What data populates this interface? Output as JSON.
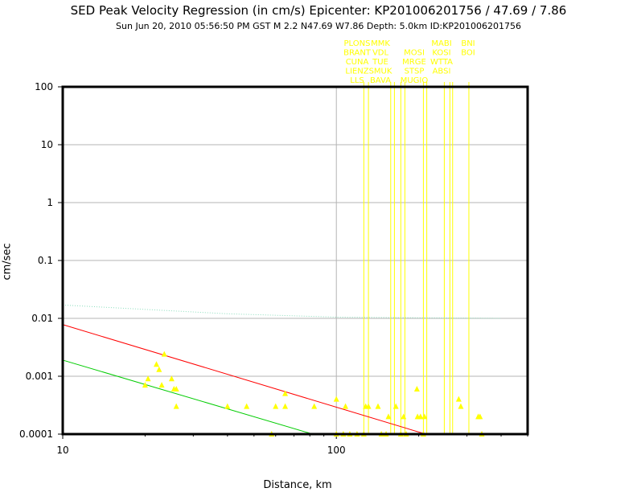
{
  "title": "SED Peak Velocity Regression (in cm/s) Epicenter: KP201006201756 / 47.69 / 7.86",
  "subtitle": "Sun Jun 20, 2010 05:56:50 PM GST   M 2.2   N47.69 W7.86   Depth: 5.0km   ID:KP201006201756",
  "colors": {
    "points": "#ffff00",
    "red_line": "#ff0000",
    "green_line": "#00cc00",
    "cyan_line": "#88ddbb",
    "grid": "#b4b4b4"
  },
  "chart_data": {
    "type": "scatter",
    "xlabel": "Distance, km",
    "ylabel": "cm/sec",
    "xscale": "log",
    "yscale": "log",
    "xlim": [
      10,
      500
    ],
    "ylim": [
      0.0001,
      100
    ],
    "xticks": [
      "10",
      "100"
    ],
    "yticks": [
      "0.0001",
      "0.001",
      "0.01",
      "0.1",
      "1",
      "10",
      "100"
    ],
    "station_label_columns": [
      [
        "PLONS",
        "BRANT",
        "CUNA",
        "LIENZ",
        "LLS"
      ],
      [
        "MMK",
        "VDL",
        "TUE",
        "SMUK",
        "BAVA"
      ],
      [
        "MOSI",
        "MRGE",
        "STSP",
        "MUGIO"
      ],
      [
        "MABI",
        "KOSI",
        "WTTA",
        "ABSI"
      ],
      [
        "BNI",
        "BOI"
      ]
    ],
    "station_marker_distances": [
      126,
      131,
      158,
      163,
      172,
      178,
      208,
      214,
      248,
      260,
      266,
      305
    ],
    "points": [
      {
        "x": 20,
        "y": 0.0007
      },
      {
        "x": 20.5,
        "y": 0.0009
      },
      {
        "x": 22,
        "y": 0.0016
      },
      {
        "x": 22.5,
        "y": 0.0013
      },
      {
        "x": 23,
        "y": 0.0007
      },
      {
        "x": 23.5,
        "y": 0.0024
      },
      {
        "x": 25,
        "y": 0.0009
      },
      {
        "x": 25.5,
        "y": 0.0006
      },
      {
        "x": 26,
        "y": 0.0006
      },
      {
        "x": 26,
        "y": 0.0003
      },
      {
        "x": 40,
        "y": 0.0003
      },
      {
        "x": 47,
        "y": 0.0003
      },
      {
        "x": 60,
        "y": 0.0003
      },
      {
        "x": 65,
        "y": 0.0005
      },
      {
        "x": 65,
        "y": 0.0003
      },
      {
        "x": 83,
        "y": 0.0003
      },
      {
        "x": 100,
        "y": 0.0004
      },
      {
        "x": 108,
        "y": 0.0003
      },
      {
        "x": 128,
        "y": 0.0003
      },
      {
        "x": 131,
        "y": 0.0003
      },
      {
        "x": 142,
        "y": 0.0003
      },
      {
        "x": 155,
        "y": 0.0002
      },
      {
        "x": 165,
        "y": 0.0003
      },
      {
        "x": 176,
        "y": 0.0002
      },
      {
        "x": 197,
        "y": 0.0006
      },
      {
        "x": 198,
        "y": 0.0002
      },
      {
        "x": 203,
        "y": 0.0002
      },
      {
        "x": 210,
        "y": 0.0002
      },
      {
        "x": 280,
        "y": 0.0004
      },
      {
        "x": 285,
        "y": 0.0003
      },
      {
        "x": 330,
        "y": 0.0002
      },
      {
        "x": 335,
        "y": 0.0002
      },
      {
        "x": 58,
        "y": 0.0001
      },
      {
        "x": 100,
        "y": 0.0001
      },
      {
        "x": 106,
        "y": 0.0001
      },
      {
        "x": 112,
        "y": 0.0001
      },
      {
        "x": 119,
        "y": 0.0001
      },
      {
        "x": 126,
        "y": 0.0001
      },
      {
        "x": 146,
        "y": 0.0001
      },
      {
        "x": 152,
        "y": 0.0001
      },
      {
        "x": 172,
        "y": 0.0001
      },
      {
        "x": 180,
        "y": 0.0001
      },
      {
        "x": 208,
        "y": 0.0001
      },
      {
        "x": 340,
        "y": 0.0001
      }
    ],
    "lines": [
      {
        "color": "red",
        "x": [
          10,
          212
        ],
        "y": [
          0.0078,
          0.0001
        ]
      },
      {
        "color": "green",
        "x": [
          10,
          82
        ],
        "y": [
          0.0019,
          0.0001
        ]
      },
      {
        "color": "cyan",
        "x": [
          10,
          40,
          100,
          400
        ],
        "y": [
          0.017,
          0.012,
          0.0105,
          0.01
        ]
      }
    ]
  }
}
